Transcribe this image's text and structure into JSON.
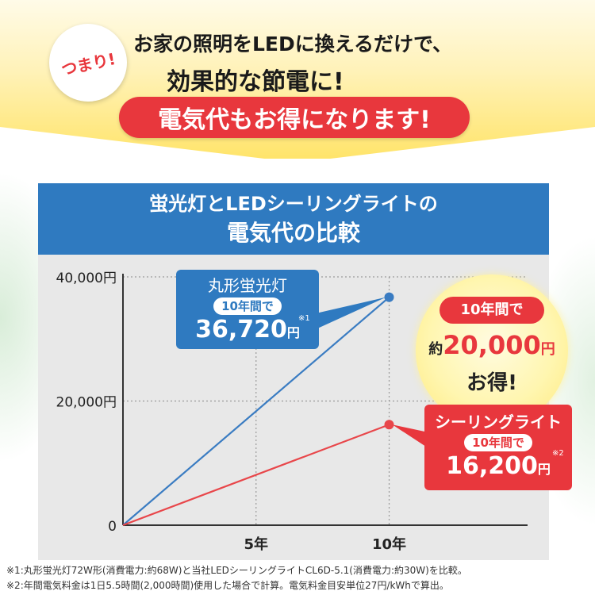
{
  "header": {
    "badge": "つまり!",
    "line1": "お家の照明をLEDに換えるだけで、",
    "line2": "効果的な節電に!",
    "highlight": "電気代もお得になります!"
  },
  "chart_title": {
    "line1": "蛍光灯とLEDシーリングライトの",
    "line2": "電気代の比較"
  },
  "callouts": {
    "fluorescent": {
      "name": "丸形蛍光灯",
      "period": "10年間で",
      "amount": "36,720",
      "unit": "円",
      "note": "※1"
    },
    "led": {
      "name": "シーリングライト",
      "period": "10年間で",
      "amount": "16,200",
      "unit": "円",
      "note": "※2"
    },
    "savings": {
      "period": "10年間で",
      "prefix": "約",
      "amount": "20,000",
      "unit": "円",
      "suffix": "お得!"
    }
  },
  "footnotes": {
    "n1": "※1:丸形蛍光灯72W形(消費電力:約68W)と当社LEDシーリングライトCL6D-5.1(消費電力:約30W)を比較。",
    "n2": "※2:年間電気料金は1日5.5時間(2,000時間)使用した場合で計算。電気料金目安単位27円/kWhで算出。"
  },
  "chart_data": {
    "type": "line",
    "title": "蛍光灯とLEDシーリングライトの電気代の比較",
    "x_ticks": [
      {
        "value": 5,
        "label": "5年"
      },
      {
        "value": 10,
        "label": "10年"
      }
    ],
    "y_ticks": [
      {
        "value": 0,
        "label": "0"
      },
      {
        "value": 20000,
        "label": "20,000円"
      },
      {
        "value": 40000,
        "label": "40,000円"
      }
    ],
    "xlim": [
      0,
      15.2
    ],
    "ylim": [
      0,
      40000
    ],
    "grid": true,
    "series": [
      {
        "name": "丸形蛍光灯",
        "color": "#3a7cc2",
        "x": [
          0,
          10
        ],
        "y": [
          0,
          36720
        ]
      },
      {
        "name": "シーリングライト",
        "color": "#e8464a",
        "x": [
          0,
          10
        ],
        "y": [
          0,
          16200
        ]
      }
    ]
  }
}
